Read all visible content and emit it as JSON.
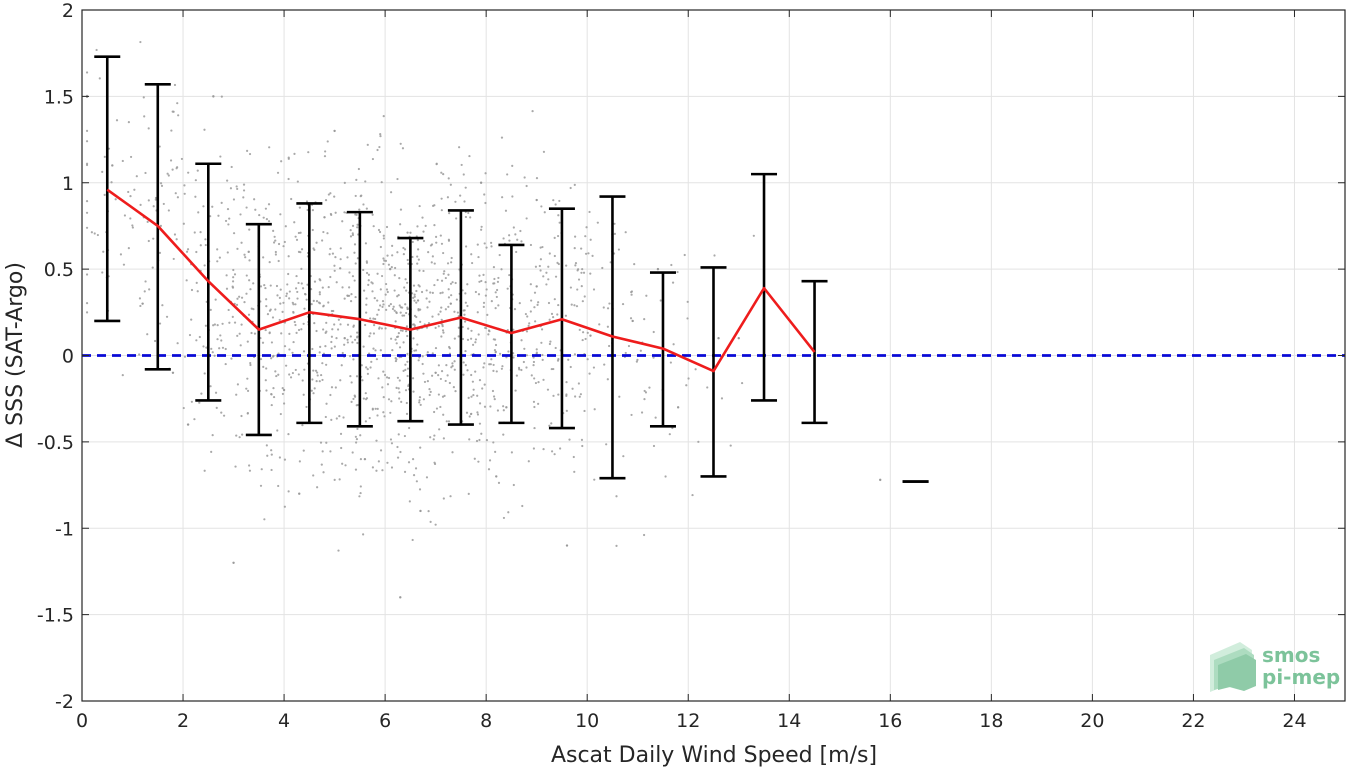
{
  "chart_data": {
    "type": "scatter",
    "title": "",
    "xlabel": "Ascat Daily Wind Speed [m/s]",
    "ylabel": "Δ SSS (SAT-Argo)",
    "xlim": [
      0,
      25
    ],
    "ylim": [
      -2,
      2
    ],
    "x_ticks": [
      0,
      2,
      4,
      6,
      8,
      10,
      12,
      14,
      16,
      18,
      20,
      22,
      24
    ],
    "y_ticks": [
      2,
      1.5,
      1,
      0.5,
      0,
      -0.5,
      -1,
      -1.5,
      -2
    ],
    "y_tick_labels": [
      "2",
      "1.5",
      "1",
      "0.5",
      "0",
      "-0.5",
      "-1",
      "-1.5",
      "-2"
    ],
    "grid": true,
    "series": [
      {
        "kind": "binned-mean-line",
        "color": "#ee1c1c",
        "x": [
          0.5,
          1.5,
          2.5,
          3.5,
          4.5,
          5.5,
          6.5,
          7.5,
          8.5,
          9.5,
          10.5,
          11.5,
          12.5,
          13.5,
          14.5
        ],
        "y": [
          0.96,
          0.75,
          0.43,
          0.15,
          0.25,
          0.21,
          0.15,
          0.22,
          0.13,
          0.21,
          0.11,
          0.04,
          -0.09,
          0.39,
          0.02
        ]
      },
      {
        "kind": "error-bars",
        "color": "#000000",
        "x": [
          0.5,
          1.5,
          2.5,
          3.5,
          4.5,
          5.5,
          6.5,
          7.5,
          8.5,
          9.5,
          10.5,
          11.5,
          12.5,
          13.5,
          14.5,
          16.5
        ],
        "upper": [
          1.73,
          1.57,
          1.11,
          0.76,
          0.88,
          0.83,
          0.68,
          0.84,
          0.64,
          0.85,
          0.92,
          0.48,
          0.51,
          1.05,
          0.43,
          -0.73
        ],
        "lower": [
          0.2,
          -0.08,
          -0.26,
          -0.46,
          -0.39,
          -0.41,
          -0.38,
          -0.4,
          -0.39,
          -0.42,
          -0.71,
          -0.41,
          -0.7,
          -0.26,
          -0.39,
          -0.73
        ]
      },
      {
        "kind": "reference-line",
        "color": "#0a0ad6",
        "style": "dashed",
        "y": 0
      },
      {
        "kind": "scatter-points",
        "color": "#9a9a9a",
        "x": [
          1.2,
          2.1,
          3.3,
          4.0,
          4.8,
          5.2,
          5.6,
          6.1,
          6.7,
          7.3,
          7.9,
          8.4,
          9.0,
          9.6,
          10.2,
          10.9,
          11.8,
          12.6,
          3.0,
          5.0,
          7.0,
          9.0,
          2.6,
          6.3,
          8.2,
          10.5,
          4.3,
          11.4,
          13.0,
          15.8,
          0.6,
          1.8
        ],
        "y": [
          0.3,
          -0.4,
          0.6,
          -0.2,
          0.8,
          0.1,
          -0.6,
          0.5,
          -0.9,
          0.3,
          1.0,
          -0.3,
          0.4,
          -1.1,
          0.0,
          0.2,
          -0.3,
          0.1,
          -1.2,
          1.3,
          -0.1,
          0.9,
          1.5,
          -1.4,
          -0.7,
          0.7,
          -0.8,
          0.5,
          0.1,
          -0.72,
          1.1,
          -0.1
        ]
      }
    ]
  },
  "logo": {
    "line1": "smos",
    "line2": "pi-mep",
    "color": "#7cc39a"
  }
}
